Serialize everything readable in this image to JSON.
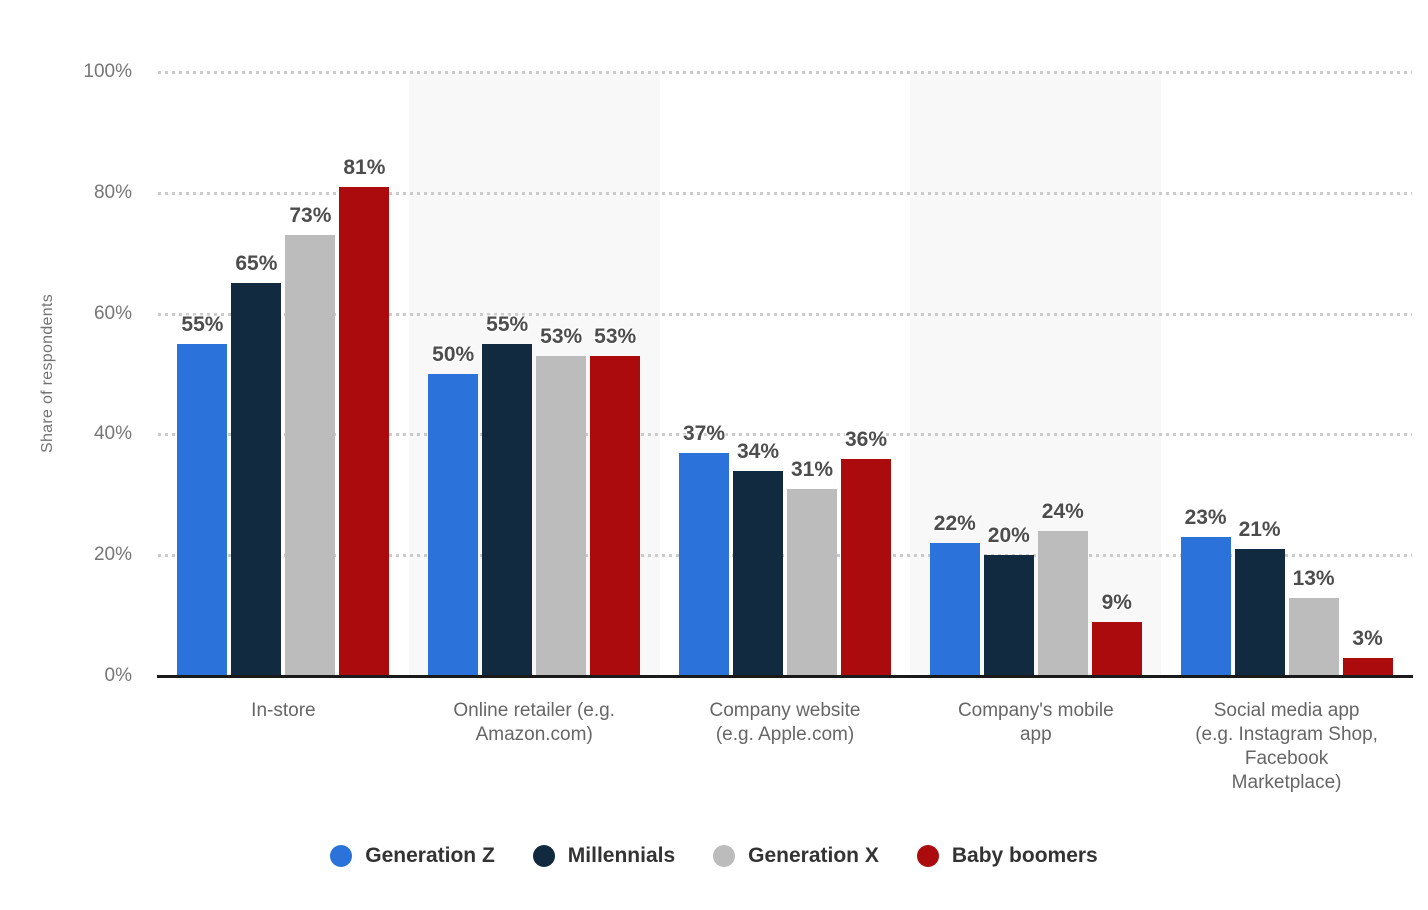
{
  "chart_data": {
    "type": "bar",
    "title": "",
    "xlabel": "",
    "ylabel": "Share of respondents",
    "ylim": [
      0,
      100
    ],
    "yticks": [
      0,
      20,
      40,
      60,
      80,
      100
    ],
    "ytick_suffix": "%",
    "value_suffix": "%",
    "grid": "horizontal dotted",
    "legend_position": "bottom",
    "background_band_slots": [
      1,
      3
    ],
    "categories": [
      "In-store",
      "Online retailer (e.g. Amazon.com)",
      "Company website (e.g. Apple.com)",
      "Company's mobile app",
      "Social media app (e.g. Instagram Shop, Facebook Marketplace)"
    ],
    "category_labels_wrapped": [
      "In-store",
      "Online retailer (e.g.\nAmazon.com)",
      "Company website\n(e.g. Apple.com)",
      "Company's mobile\napp",
      "Social media app\n(e.g. Instagram Shop,\nFacebook\nMarketplace)"
    ],
    "series": [
      {
        "name": "Generation Z",
        "color": "#2b73db",
        "values": [
          55,
          50,
          37,
          22,
          23
        ]
      },
      {
        "name": "Millennials",
        "color": "#122a3f",
        "values": [
          65,
          55,
          34,
          20,
          21
        ]
      },
      {
        "name": "Generation X",
        "color": "#bcbcbc",
        "values": [
          73,
          53,
          31,
          24,
          13
        ]
      },
      {
        "name": "Baby boomers",
        "color": "#ac0b0e",
        "values": [
          81,
          53,
          36,
          9,
          3
        ]
      }
    ]
  },
  "colors": {
    "background": "#ffffff",
    "band": "#f8f8f8",
    "gridline": "#cbcbcb",
    "axis_line": "#1a1a1a",
    "tick_label": "#767676",
    "value_label": "#4d4d4d",
    "category_label": "#666666",
    "legend_text": "#333333"
  }
}
